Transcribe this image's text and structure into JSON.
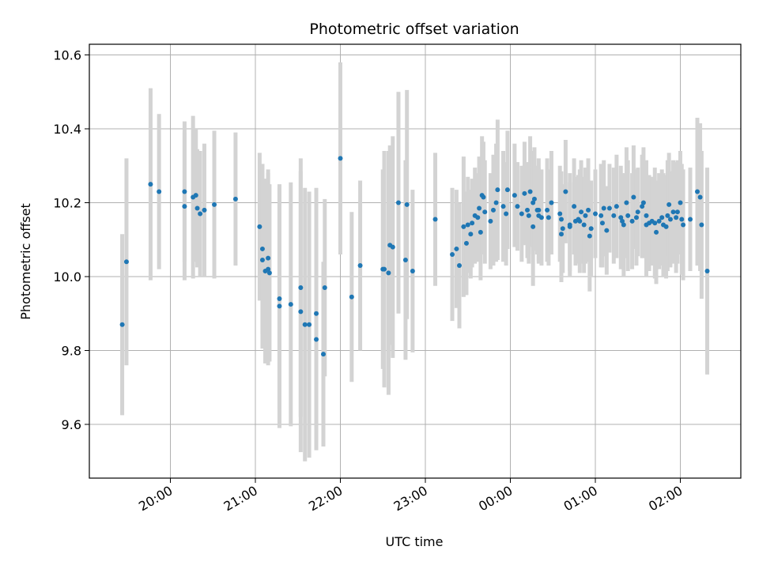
{
  "chart_data": {
    "type": "scatter",
    "title": "Photometric offset variation",
    "xlabel": "UTC time",
    "ylabel": "Photometric offset",
    "x_tick_labels": [
      "20:00",
      "21:00",
      "22:00",
      "23:00",
      "00:00",
      "01:00",
      "02:00"
    ],
    "y_tick_labels": [
      "9.6",
      "9.8",
      "10.0",
      "10.2",
      "10.4",
      "10.6"
    ],
    "grid": true,
    "legend": "none",
    "colors": {
      "marker": "#1f77b4",
      "errorbar": "#d3d3d3",
      "grid": "#b0b0b0"
    },
    "series": [
      {
        "points": [
          {
            "x": "19:26",
            "y": 9.87,
            "e": 0.245
          },
          {
            "x": "19:29",
            "y": 10.04,
            "e": 0.28
          },
          {
            "x": "19:46",
            "y": 10.25,
            "e": 0.26
          },
          {
            "x": "19:52",
            "y": 10.23,
            "e": 0.21
          },
          {
            "x": "20:10",
            "y": 10.23,
            "e": 0.19
          },
          {
            "x": "20:10",
            "y": 10.19,
            "e": 0.2
          },
          {
            "x": "20:16",
            "y": 10.215,
            "e": 0.22
          },
          {
            "x": "20:18",
            "y": 10.22,
            "e": 0.18
          },
          {
            "x": "20:19",
            "y": 10.185,
            "e": 0.16
          },
          {
            "x": "20:21",
            "y": 10.17,
            "e": 0.17
          },
          {
            "x": "20:24",
            "y": 10.18,
            "e": 0.18
          },
          {
            "x": "20:31",
            "y": 10.195,
            "e": 0.2
          },
          {
            "x": "20:46",
            "y": 10.21,
            "e": 0.18
          },
          {
            "x": "21:03",
            "y": 10.135,
            "e": 0.2
          },
          {
            "x": "21:05",
            "y": 10.075,
            "e": 0.23
          },
          {
            "x": "21:05",
            "y": 10.045,
            "e": 0.24
          },
          {
            "x": "21:07",
            "y": 10.015,
            "e": 0.25
          },
          {
            "x": "21:09",
            "y": 10.05,
            "e": 0.24
          },
          {
            "x": "21:09",
            "y": 10.02,
            "e": 0.26
          },
          {
            "x": "21:10",
            "y": 10.01,
            "e": 0.24
          },
          {
            "x": "21:17",
            "y": 9.94,
            "e": 0.3
          },
          {
            "x": "21:17",
            "y": 9.92,
            "e": 0.33
          },
          {
            "x": "21:25",
            "y": 9.925,
            "e": 0.33
          },
          {
            "x": "21:32",
            "y": 9.97,
            "e": 0.35
          },
          {
            "x": "21:32",
            "y": 9.905,
            "e": 0.38
          },
          {
            "x": "21:35",
            "y": 9.87,
            "e": 0.37
          },
          {
            "x": "21:38",
            "y": 9.87,
            "e": 0.36
          },
          {
            "x": "21:43",
            "y": 9.9,
            "e": 0.34
          },
          {
            "x": "21:43",
            "y": 9.83,
            "e": 0.3
          },
          {
            "x": "21:48",
            "y": 9.79,
            "e": 0.25
          },
          {
            "x": "21:49",
            "y": 9.97,
            "e": 0.24
          },
          {
            "x": "22:00",
            "y": 10.32,
            "e": 0.26
          },
          {
            "x": "22:08",
            "y": 9.945,
            "e": 0.23
          },
          {
            "x": "22:14",
            "y": 10.03,
            "e": 0.23
          },
          {
            "x": "22:30",
            "y": 10.02,
            "e": 0.27
          },
          {
            "x": "22:31",
            "y": 10.02,
            "e": 0.32
          },
          {
            "x": "22:34",
            "y": 10.01,
            "e": 0.33
          },
          {
            "x": "22:35",
            "y": 10.085,
            "e": 0.27
          },
          {
            "x": "22:37",
            "y": 10.08,
            "e": 0.3
          },
          {
            "x": "22:41",
            "y": 10.2,
            "e": 0.3
          },
          {
            "x": "22:46",
            "y": 10.045,
            "e": 0.27
          },
          {
            "x": "22:47",
            "y": 10.195,
            "e": 0.31
          },
          {
            "x": "22:51",
            "y": 10.015,
            "e": 0.22
          },
          {
            "x": "23:07",
            "y": 10.155,
            "e": 0.18
          },
          {
            "x": "23:19",
            "y": 10.06,
            "e": 0.18
          },
          {
            "x": "23:22",
            "y": 10.075,
            "e": 0.16
          },
          {
            "x": "23:24",
            "y": 10.03,
            "e": 0.17
          },
          {
            "x": "23:27",
            "y": 10.135,
            "e": 0.19
          },
          {
            "x": "23:29",
            "y": 10.09,
            "e": 0.14
          },
          {
            "x": "23:30",
            "y": 10.14,
            "e": 0.13
          },
          {
            "x": "23:32",
            "y": 10.115,
            "e": 0.12
          },
          {
            "x": "23:33",
            "y": 10.145,
            "e": 0.12
          },
          {
            "x": "23:35",
            "y": 10.165,
            "e": 0.13
          },
          {
            "x": "23:37",
            "y": 10.16,
            "e": 0.12
          },
          {
            "x": "23:38",
            "y": 10.185,
            "e": 0.14
          },
          {
            "x": "23:39",
            "y": 10.12,
            "e": 0.13
          },
          {
            "x": "23:40",
            "y": 10.22,
            "e": 0.16
          },
          {
            "x": "23:41",
            "y": 10.215,
            "e": 0.15
          },
          {
            "x": "23:42",
            "y": 10.175,
            "e": 0.14
          },
          {
            "x": "23:46",
            "y": 10.15,
            "e": 0.13
          },
          {
            "x": "23:48",
            "y": 10.18,
            "e": 0.15
          },
          {
            "x": "23:50",
            "y": 10.2,
            "e": 0.16
          },
          {
            "x": "23:51",
            "y": 10.235,
            "e": 0.19
          },
          {
            "x": "23:55",
            "y": 10.19,
            "e": 0.15
          },
          {
            "x": "23:57",
            "y": 10.17,
            "e": 0.14
          },
          {
            "x": "23:58",
            "y": 10.235,
            "e": 0.16
          },
          {
            "x": "00:03",
            "y": 10.22,
            "e": 0.14
          },
          {
            "x": "00:05",
            "y": 10.19,
            "e": 0.12
          },
          {
            "x": "00:08",
            "y": 10.17,
            "e": 0.13
          },
          {
            "x": "00:10",
            "y": 10.225,
            "e": 0.14
          },
          {
            "x": "00:12",
            "y": 10.18,
            "e": 0.13
          },
          {
            "x": "00:13",
            "y": 10.165,
            "e": 0.13
          },
          {
            "x": "00:14",
            "y": 10.23,
            "e": 0.15
          },
          {
            "x": "00:16",
            "y": 10.2,
            "e": 0.14
          },
          {
            "x": "00:16",
            "y": 10.135,
            "e": 0.16
          },
          {
            "x": "00:17",
            "y": 10.21,
            "e": 0.14
          },
          {
            "x": "00:19",
            "y": 10.18,
            "e": 0.12
          },
          {
            "x": "00:20",
            "y": 10.18,
            "e": 0.14
          },
          {
            "x": "00:20",
            "y": 10.165,
            "e": 0.13
          },
          {
            "x": "00:22",
            "y": 10.16,
            "e": 0.13
          },
          {
            "x": "00:26",
            "y": 10.18,
            "e": 0.14
          },
          {
            "x": "00:27",
            "y": 10.16,
            "e": 0.13
          },
          {
            "x": "00:29",
            "y": 10.2,
            "e": 0.14
          },
          {
            "x": "00:35",
            "y": 10.17,
            "e": 0.13
          },
          {
            "x": "00:36",
            "y": 10.155,
            "e": 0.13
          },
          {
            "x": "00:36",
            "y": 10.115,
            "e": 0.13
          },
          {
            "x": "00:37",
            "y": 10.13,
            "e": 0.12
          },
          {
            "x": "00:39",
            "y": 10.23,
            "e": 0.14
          },
          {
            "x": "00:42",
            "y": 10.14,
            "e": 0.14
          },
          {
            "x": "00:42",
            "y": 10.135,
            "e": 0.12
          },
          {
            "x": "00:45",
            "y": 10.19,
            "e": 0.13
          },
          {
            "x": "00:46",
            "y": 10.15,
            "e": 0.12
          },
          {
            "x": "00:48",
            "y": 10.155,
            "e": 0.12
          },
          {
            "x": "00:49",
            "y": 10.15,
            "e": 0.14
          },
          {
            "x": "00:50",
            "y": 10.175,
            "e": 0.14
          },
          {
            "x": "00:52",
            "y": 10.14,
            "e": 0.13
          },
          {
            "x": "00:53",
            "y": 10.165,
            "e": 0.13
          },
          {
            "x": "00:55",
            "y": 10.18,
            "e": 0.14
          },
          {
            "x": "00:56",
            "y": 10.11,
            "e": 0.15
          },
          {
            "x": "00:57",
            "y": 10.13,
            "e": 0.13
          },
          {
            "x": "01:00",
            "y": 10.17,
            "e": 0.12
          },
          {
            "x": "01:04",
            "y": 10.165,
            "e": 0.14
          },
          {
            "x": "01:05",
            "y": 10.145,
            "e": 0.12
          },
          {
            "x": "01:06",
            "y": 10.185,
            "e": 0.13
          },
          {
            "x": "01:08",
            "y": 10.125,
            "e": 0.12
          },
          {
            "x": "01:10",
            "y": 10.185,
            "e": 0.12
          },
          {
            "x": "01:13",
            "y": 10.165,
            "e": 0.13
          },
          {
            "x": "01:15",
            "y": 10.19,
            "e": 0.14
          },
          {
            "x": "01:18",
            "y": 10.16,
            "e": 0.14
          },
          {
            "x": "01:19",
            "y": 10.15,
            "e": 0.13
          },
          {
            "x": "01:20",
            "y": 10.14,
            "e": 0.14
          },
          {
            "x": "01:22",
            "y": 10.2,
            "e": 0.15
          },
          {
            "x": "01:23",
            "y": 10.165,
            "e": 0.15
          },
          {
            "x": "01:26",
            "y": 10.15,
            "e": 0.13
          },
          {
            "x": "01:27",
            "y": 10.215,
            "e": 0.14
          },
          {
            "x": "01:29",
            "y": 10.16,
            "e": 0.13
          },
          {
            "x": "01:30",
            "y": 10.175,
            "e": 0.12
          },
          {
            "x": "01:33",
            "y": 10.19,
            "e": 0.14
          },
          {
            "x": "01:34",
            "y": 10.2,
            "e": 0.15
          },
          {
            "x": "01:36",
            "y": 10.165,
            "e": 0.15
          },
          {
            "x": "01:36",
            "y": 10.14,
            "e": 0.14
          },
          {
            "x": "01:38",
            "y": 10.145,
            "e": 0.13
          },
          {
            "x": "01:40",
            "y": 10.15,
            "e": 0.12
          },
          {
            "x": "01:42",
            "y": 10.145,
            "e": 0.15
          },
          {
            "x": "01:43",
            "y": 10.12,
            "e": 0.14
          },
          {
            "x": "01:45",
            "y": 10.15,
            "e": 0.13
          },
          {
            "x": "01:47",
            "y": 10.16,
            "e": 0.13
          },
          {
            "x": "01:48",
            "y": 10.14,
            "e": 0.14
          },
          {
            "x": "01:50",
            "y": 10.135,
            "e": 0.14
          },
          {
            "x": "01:51",
            "y": 10.165,
            "e": 0.15
          },
          {
            "x": "01:52",
            "y": 10.195,
            "e": 0.14
          },
          {
            "x": "01:53",
            "y": 10.155,
            "e": 0.13
          },
          {
            "x": "01:55",
            "y": 10.175,
            "e": 0.14
          },
          {
            "x": "01:57",
            "y": 10.16,
            "e": 0.15
          },
          {
            "x": "01:58",
            "y": 10.175,
            "e": 0.14
          },
          {
            "x": "02:00",
            "y": 10.2,
            "e": 0.14
          },
          {
            "x": "02:01",
            "y": 10.155,
            "e": 0.15
          },
          {
            "x": "02:02",
            "y": 10.14,
            "e": 0.15
          },
          {
            "x": "02:07",
            "y": 10.155,
            "e": 0.14
          },
          {
            "x": "02:12",
            "y": 10.23,
            "e": 0.2
          },
          {
            "x": "02:14",
            "y": 10.215,
            "e": 0.2
          },
          {
            "x": "02:15",
            "y": 10.14,
            "e": 0.2
          },
          {
            "x": "02:19",
            "y": 10.015,
            "e": 0.28
          }
        ]
      }
    ]
  }
}
